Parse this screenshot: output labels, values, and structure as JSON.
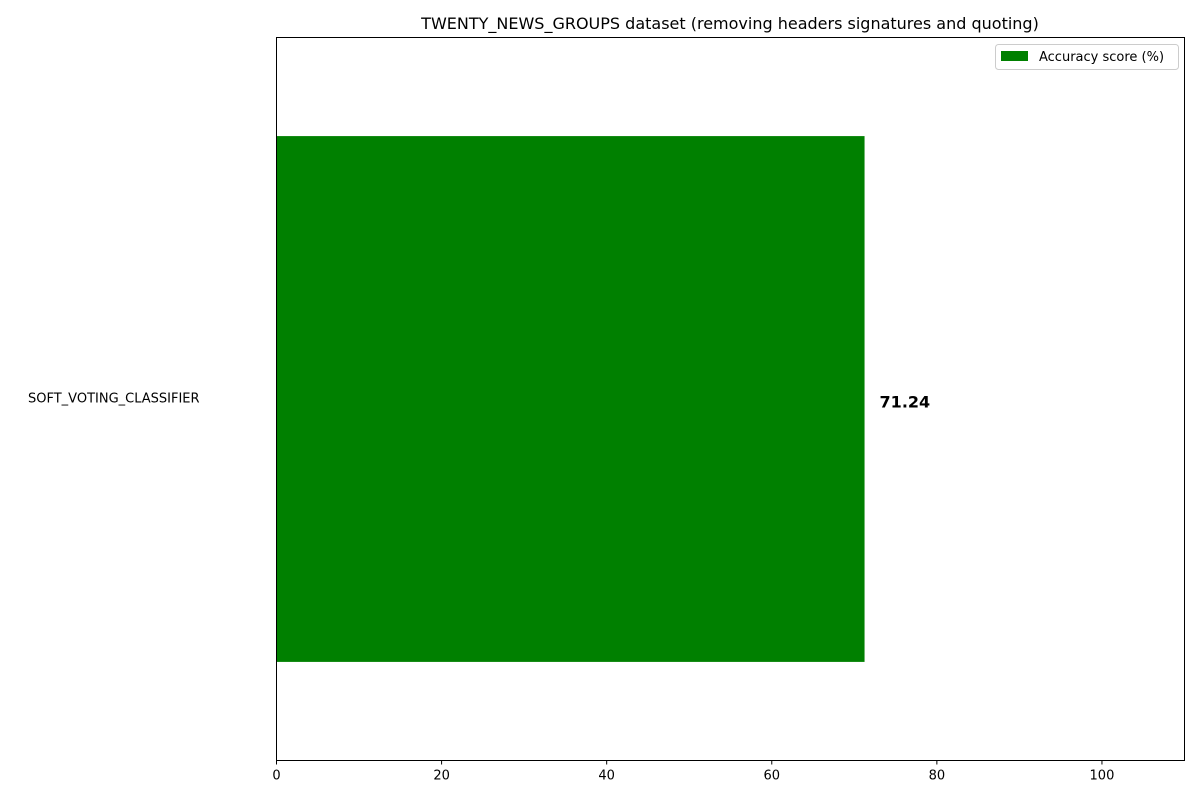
{
  "chart_data": {
    "type": "bar",
    "orientation": "horizontal",
    "title": "TWENTY_NEWS_GROUPS dataset (removing headers signatures and quoting)",
    "xlabel": "",
    "ylabel": "",
    "categories": [
      "SOFT_VOTING_CLASSIFIER"
    ],
    "series": [
      {
        "name": "Accuracy score (%)",
        "values": [
          71.24
        ],
        "color": "#008000"
      }
    ],
    "data_labels": [
      "71.24"
    ],
    "xlim": [
      0,
      110
    ],
    "xticks": [
      0,
      20,
      40,
      60,
      80,
      100
    ],
    "xtick_labels": [
      "0",
      "20",
      "40",
      "60",
      "80",
      "100"
    ],
    "grid": false,
    "legend_position": "top-right"
  }
}
